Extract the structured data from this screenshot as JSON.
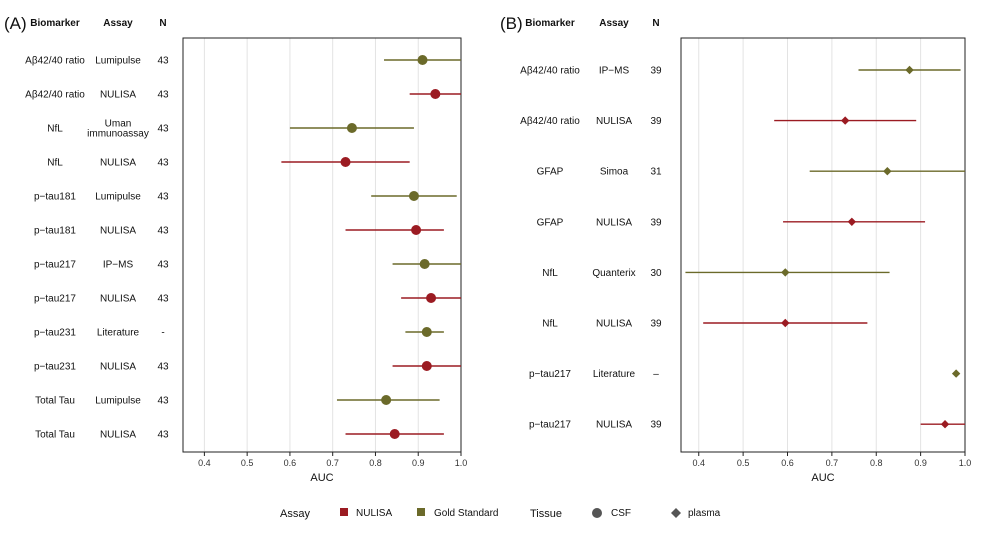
{
  "colors": {
    "nulisa": "#9b1b22",
    "gold": "#6b6a2a",
    "grid": "#e3e3e3",
    "tissue_marker": "#555555"
  },
  "chart_data": [
    {
      "type": "forest",
      "panel": "(A)",
      "headers": {
        "biomarker": "Biomarker",
        "assay": "Assay",
        "n": "N"
      },
      "xlabel": "AUC",
      "xlim": [
        0.35,
        1.0
      ],
      "xticks": [
        "0.4",
        "0.5",
        "0.6",
        "0.7",
        "0.8",
        "0.9",
        "1.0"
      ],
      "marker": "circle",
      "rows": [
        {
          "biomarker": "Aβ42/40 ratio",
          "assay": [
            "Lumipulse"
          ],
          "n": "43",
          "group": "gold",
          "auc": 0.91,
          "lo": 0.82,
          "hi": 1.0
        },
        {
          "biomarker": "Aβ42/40 ratio",
          "assay": [
            "NULISA"
          ],
          "n": "43",
          "group": "nulisa",
          "auc": 0.94,
          "lo": 0.88,
          "hi": 1.0
        },
        {
          "biomarker": "NfL",
          "assay": [
            "Uman",
            "immunoassay"
          ],
          "n": "43",
          "group": "gold",
          "auc": 0.745,
          "lo": 0.6,
          "hi": 0.89
        },
        {
          "biomarker": "NfL",
          "assay": [
            "NULISA"
          ],
          "n": "43",
          "group": "nulisa",
          "auc": 0.73,
          "lo": 0.58,
          "hi": 0.88
        },
        {
          "biomarker": "p−tau181",
          "assay": [
            "Lumipulse"
          ],
          "n": "43",
          "group": "gold",
          "auc": 0.89,
          "lo": 0.79,
          "hi": 0.99
        },
        {
          "biomarker": "p−tau181",
          "assay": [
            "NULISA"
          ],
          "n": "43",
          "group": "nulisa",
          "auc": 0.895,
          "lo": 0.73,
          "hi": 0.96
        },
        {
          "biomarker": "p−tau217",
          "assay": [
            "IP−MS"
          ],
          "n": "43",
          "group": "gold",
          "auc": 0.915,
          "lo": 0.84,
          "hi": 1.0
        },
        {
          "biomarker": "p−tau217",
          "assay": [
            "NULISA"
          ],
          "n": "43",
          "group": "nulisa",
          "auc": 0.93,
          "lo": 0.86,
          "hi": 1.0
        },
        {
          "biomarker": "p−tau231",
          "assay": [
            "Literature"
          ],
          "n": "-",
          "group": "gold",
          "auc": 0.92,
          "lo": 0.87,
          "hi": 0.96
        },
        {
          "biomarker": "p−tau231",
          "assay": [
            "NULISA"
          ],
          "n": "43",
          "group": "nulisa",
          "auc": 0.92,
          "lo": 0.84,
          "hi": 1.0
        },
        {
          "biomarker": "Total Tau",
          "assay": [
            "Lumipulse"
          ],
          "n": "43",
          "group": "gold",
          "auc": 0.825,
          "lo": 0.71,
          "hi": 0.95
        },
        {
          "biomarker": "Total Tau",
          "assay": [
            "NULISA"
          ],
          "n": "43",
          "group": "nulisa",
          "auc": 0.845,
          "lo": 0.73,
          "hi": 0.96
        }
      ]
    },
    {
      "type": "forest",
      "panel": "(B)",
      "headers": {
        "biomarker": "Biomarker",
        "assay": "Assay",
        "n": "N"
      },
      "xlabel": "AUC",
      "xlim": [
        0.36,
        1.0
      ],
      "xticks": [
        "0.4",
        "0.5",
        "0.6",
        "0.7",
        "0.8",
        "0.9",
        "1.0"
      ],
      "marker": "diamond",
      "rows": [
        {
          "biomarker": "Aβ42/40 ratio",
          "assay": [
            "IP−MS"
          ],
          "n": "39",
          "group": "gold",
          "auc": 0.875,
          "lo": 0.76,
          "hi": 0.99
        },
        {
          "biomarker": "Aβ42/40 ratio",
          "assay": [
            "NULISA"
          ],
          "n": "39",
          "group": "nulisa",
          "auc": 0.73,
          "lo": 0.57,
          "hi": 0.89
        },
        {
          "biomarker": "GFAP",
          "assay": [
            "Simoa"
          ],
          "n": "31",
          "group": "gold",
          "auc": 0.825,
          "lo": 0.65,
          "hi": 1.0
        },
        {
          "biomarker": "GFAP",
          "assay": [
            "NULISA"
          ],
          "n": "39",
          "group": "nulisa",
          "auc": 0.745,
          "lo": 0.59,
          "hi": 0.91
        },
        {
          "biomarker": "NfL",
          "assay": [
            "Quanterix"
          ],
          "n": "30",
          "group": "gold",
          "auc": 0.595,
          "lo": 0.37,
          "hi": 0.83
        },
        {
          "biomarker": "NfL",
          "assay": [
            "NULISA"
          ],
          "n": "39",
          "group": "nulisa",
          "auc": 0.595,
          "lo": 0.41,
          "hi": 0.78
        },
        {
          "biomarker": "p−tau217",
          "assay": [
            "Literature"
          ],
          "n": "–",
          "group": "gold",
          "auc": 0.98,
          "lo": 0.98,
          "hi": 0.98
        },
        {
          "biomarker": "p−tau217",
          "assay": [
            "NULISA"
          ],
          "n": "39",
          "group": "nulisa",
          "auc": 0.955,
          "lo": 0.9,
          "hi": 1.0
        }
      ]
    }
  ],
  "legend": {
    "assay_title": "Assay",
    "assay_items": [
      {
        "label": "NULISA",
        "group": "nulisa"
      },
      {
        "label": "Gold Standard",
        "group": "gold"
      }
    ],
    "tissue_title": "Tissue",
    "tissue_items": [
      {
        "label": "CSF",
        "shape": "circle"
      },
      {
        "label": "plasma",
        "shape": "diamond"
      }
    ]
  }
}
